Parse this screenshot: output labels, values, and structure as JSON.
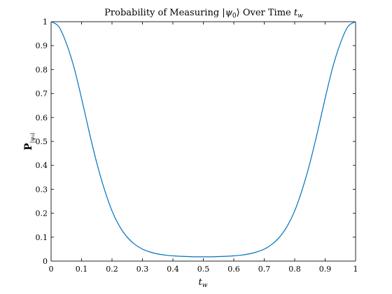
{
  "chart_data": {
    "type": "line",
    "title": "Probability of Measuring |ψ₀⟩ Over Time t_w",
    "title_parts": {
      "prefix": "Probability of Measuring |",
      "psi": "ψ",
      "psi_sub": "0",
      "middle": "⟩ Over Time ",
      "t": "t",
      "t_sub": "w"
    },
    "xlabel_parts": {
      "main": "t",
      "sub": "w"
    },
    "ylabel_parts": {
      "main": "P",
      "sub": "|ψ₀⟩"
    },
    "xlim": [
      0,
      1
    ],
    "ylim": [
      0,
      1
    ],
    "x_ticks": [
      0,
      0.1,
      0.2,
      0.3,
      0.4,
      0.5,
      0.6,
      0.7,
      0.8,
      0.9,
      1
    ],
    "y_ticks": [
      0,
      0.1,
      0.2,
      0.3,
      0.4,
      0.5,
      0.6,
      0.7,
      0.8,
      0.9,
      1
    ],
    "x_tick_labels": [
      "0",
      "0.1",
      "0.2",
      "0.3",
      "0.4",
      "0.5",
      "0.6",
      "0.7",
      "0.8",
      "0.9",
      "1"
    ],
    "y_tick_labels": [
      "0",
      "0.1",
      "0.2",
      "0.3",
      "0.4",
      "0.5",
      "0.6",
      "0.7",
      "0.8",
      "0.9",
      "1"
    ],
    "grid": false,
    "line_color": "#0072BD",
    "series": [
      {
        "x": [
          0,
          0.025,
          0.05,
          0.075,
          0.1,
          0.125,
          0.15,
          0.175,
          0.2,
          0.225,
          0.25,
          0.275,
          0.3,
          0.325,
          0.35,
          0.375,
          0.4,
          0.425,
          0.45,
          0.475,
          0.5,
          0.525,
          0.55,
          0.575,
          0.6,
          0.625,
          0.65,
          0.675,
          0.7,
          0.725,
          0.75,
          0.775,
          0.8,
          0.825,
          0.85,
          0.875,
          0.9,
          0.925,
          0.95,
          0.975,
          1
        ],
        "values": [
          1.0,
          0.98,
          0.91,
          0.81,
          0.68,
          0.54,
          0.41,
          0.3,
          0.21,
          0.145,
          0.1,
          0.07,
          0.05,
          0.038,
          0.03,
          0.025,
          0.022,
          0.02,
          0.019,
          0.018,
          0.018,
          0.018,
          0.019,
          0.02,
          0.022,
          0.025,
          0.03,
          0.038,
          0.05,
          0.07,
          0.1,
          0.145,
          0.21,
          0.3,
          0.41,
          0.54,
          0.68,
          0.81,
          0.91,
          0.98,
          1.0
        ]
      }
    ]
  }
}
